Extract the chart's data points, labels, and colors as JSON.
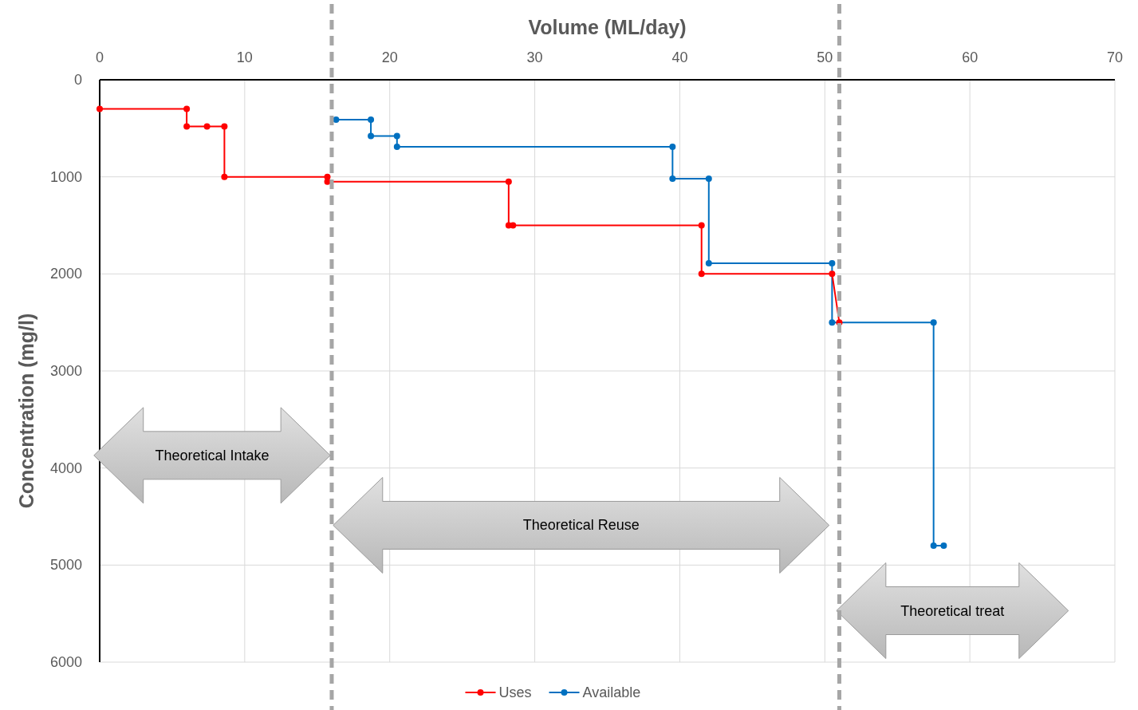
{
  "chart_data": {
    "type": "line",
    "xlabel": "Volume (ML/day)",
    "ylabel": "Concentration (mg/l)",
    "xlim": [
      0,
      70
    ],
    "xticks": [
      0,
      10,
      20,
      30,
      40,
      50,
      60,
      70
    ],
    "ylim": [
      6000,
      0
    ],
    "yticks": [
      0,
      1000,
      2000,
      3000,
      4000,
      5000,
      6000
    ],
    "grid": true,
    "legend": "bottom",
    "marker": "circle",
    "line_style": "solid",
    "series": [
      {
        "name": "Uses",
        "color": "#ff0000",
        "x": [
          0,
          6,
          6,
          7.4,
          8.6,
          8.6,
          15.7,
          15.7,
          28.2,
          28.2,
          28.5,
          41.5,
          41.5,
          50.5,
          51
        ],
        "values": [
          300,
          300,
          480,
          480,
          480,
          1000,
          1000,
          1050,
          1050,
          1500,
          1500,
          1500,
          2000,
          2000,
          2500
        ]
      },
      {
        "name": "Available",
        "color": "#0070c0",
        "x": [
          16.3,
          18.7,
          18.7,
          20.5,
          20.5,
          39.5,
          39.5,
          42,
          42,
          50.5,
          50.5,
          57.5,
          57.5,
          58.2
        ],
        "values": [
          410,
          410,
          580,
          580,
          690,
          690,
          1020,
          1020,
          1890,
          1890,
          2500,
          2500,
          4800,
          4800
        ]
      }
    ],
    "ref_lines": [
      {
        "axis": "x",
        "value": 16,
        "color": "#a6a6a6",
        "line_style": "dashed"
      },
      {
        "axis": "x",
        "value": 51,
        "color": "#a6a6a6",
        "line_style": "dashed"
      }
    ],
    "annotations": [
      "Theoretical Intake",
      "Theoretical Reuse",
      "Theoretical treat"
    ]
  }
}
